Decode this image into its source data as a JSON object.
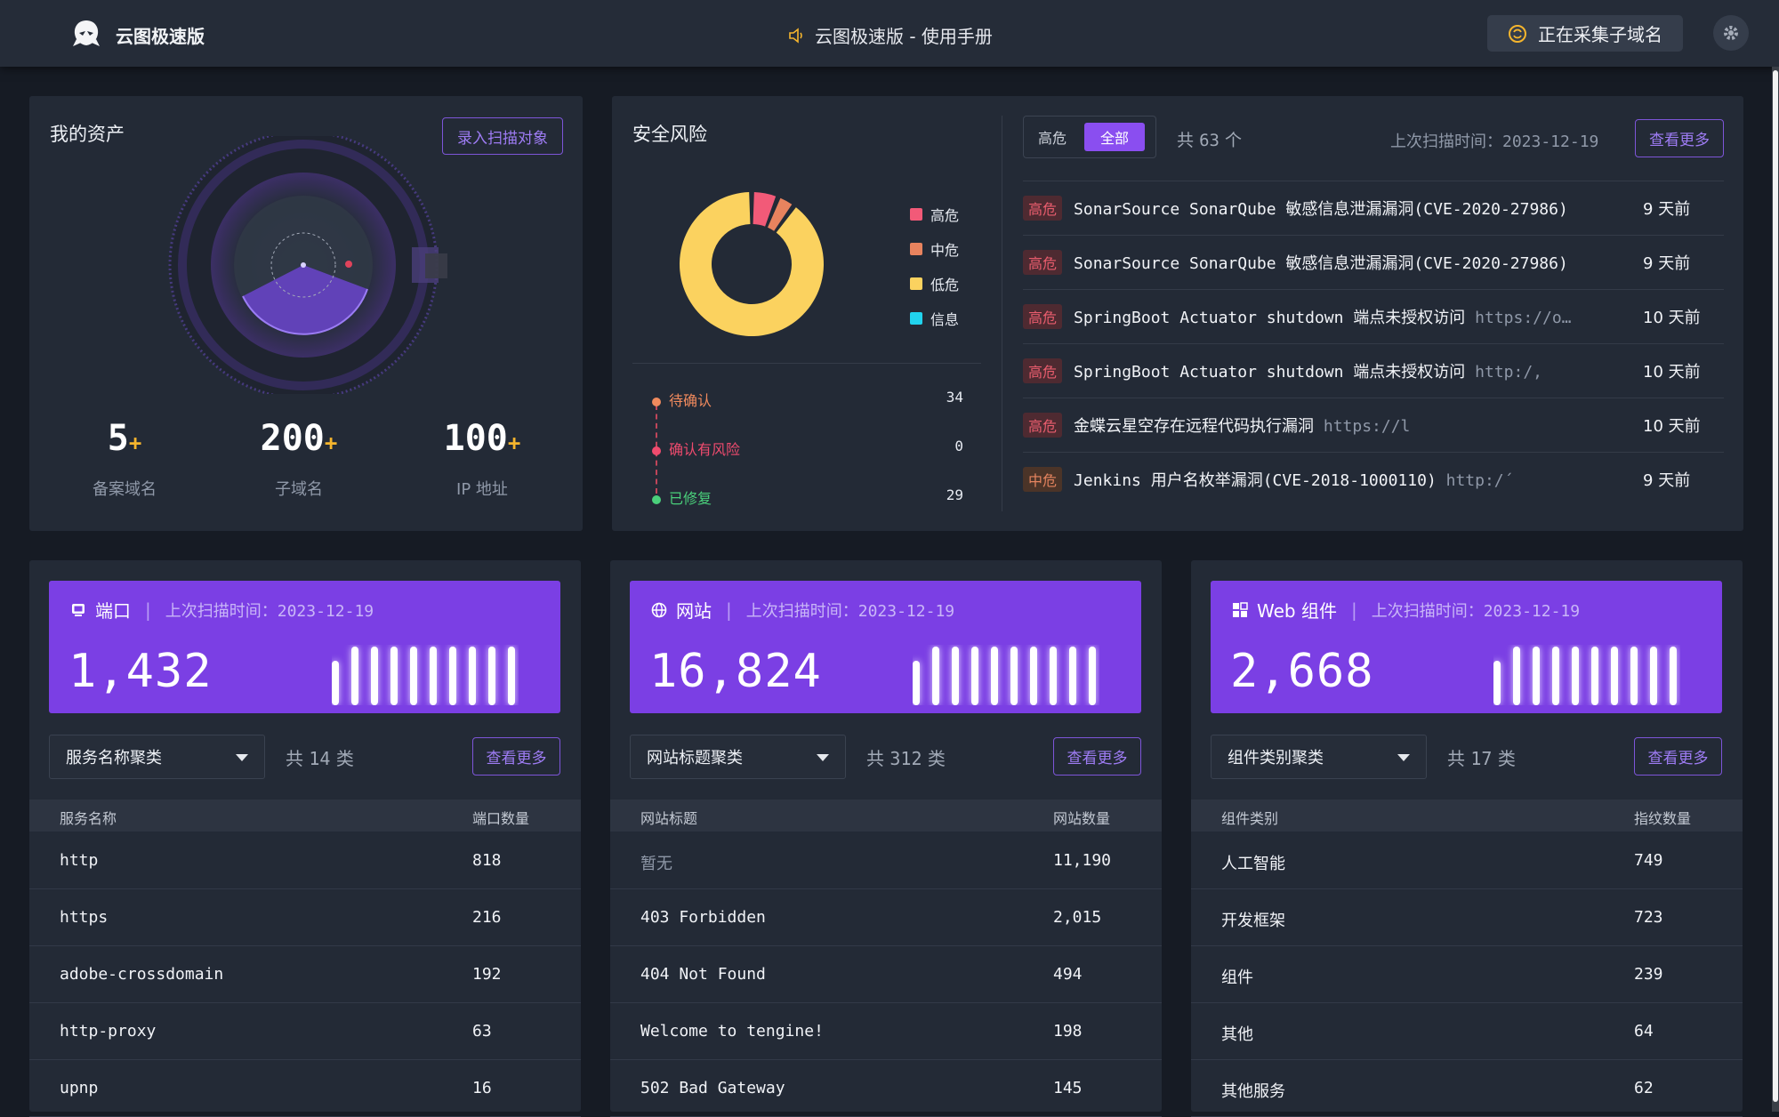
{
  "app": {
    "title": "云图极速版",
    "manual": "云图极速版 - 使用手册",
    "collect_status": "正在采集子域名"
  },
  "assets": {
    "title": "我的资产",
    "add_button": "录入扫描对象",
    "stats": [
      {
        "value": "5",
        "plus": "+",
        "label": "备案域名"
      },
      {
        "value": "200",
        "plus": "+",
        "label": "子域名"
      },
      {
        "value": "100",
        "plus": "+",
        "label": "IP 地址"
      }
    ]
  },
  "risk": {
    "title": "安全风险",
    "legend": [
      {
        "label": "高危",
        "color": "#f25a78"
      },
      {
        "label": "中危",
        "color": "#e8835e"
      },
      {
        "label": "低危",
        "color": "#fbd25f"
      },
      {
        "label": "信息",
        "color": "#21d3ee"
      }
    ],
    "donut": [
      {
        "level": "高危",
        "value": 6
      },
      {
        "level": "中危",
        "value": 4
      },
      {
        "level": "低危",
        "value": 90
      },
      {
        "level": "信息",
        "value": 0
      }
    ],
    "status": [
      {
        "label": "待确认",
        "value": "34",
        "color": "#f08a5d"
      },
      {
        "label": "确认有风险",
        "value": "0",
        "color": "#ef4b6e"
      },
      {
        "label": "已修复",
        "value": "29",
        "color": "#4ad07b"
      }
    ],
    "filter": {
      "high": "高危",
      "all": "全部"
    },
    "total_prefix": "共",
    "total_value": "63",
    "total_suffix": "个",
    "last_scan": "上次扫描时间：2023-12-19",
    "more": "查看更多",
    "vulns": [
      {
        "level": "高危",
        "name": "SonarSource SonarQube 敏感信息泄漏漏洞(CVE-2020-27986)",
        "url": "",
        "time": "9 天前"
      },
      {
        "level": "高危",
        "name": "SonarSource SonarQube 敏感信息泄漏漏洞(CVE-2020-27986)",
        "url": "",
        "time": "9 天前"
      },
      {
        "level": "高危",
        "name": "SpringBoot Actuator shutdown 端点未授权访问",
        "url": "https://o…",
        "time": "10 天前"
      },
      {
        "level": "高危",
        "name": "SpringBoot Actuator shutdown 端点未授权访问",
        "url": "http:/,",
        "time": "10 天前"
      },
      {
        "level": "高危",
        "name": "金蝶云星空存在远程代码执行漏洞",
        "url": "https://l",
        "time": "10 天前"
      },
      {
        "level": "中危",
        "name": "Jenkins 用户名枚举漏洞(CVE-2018-1000110)",
        "url": "http:/´",
        "time": "9 天前"
      }
    ]
  },
  "panels": [
    {
      "title": "端口",
      "icon": "monitor-icon",
      "last_scan": "上次扫描时间：2023-12-19",
      "total": "1,432",
      "dropdown": "服务名称聚类",
      "count_prefix": "共",
      "count": "14",
      "count_suffix": "类",
      "more": "查看更多",
      "col1": "服务名称",
      "col2": "端口数量",
      "rows": [
        [
          "http",
          "818"
        ],
        [
          "https",
          "216"
        ],
        [
          "adobe-crossdomain",
          "192"
        ],
        [
          "http-proxy",
          "63"
        ],
        [
          "upnp",
          "16"
        ]
      ]
    },
    {
      "title": "网站",
      "icon": "globe-icon",
      "last_scan": "上次扫描时间：2023-12-19",
      "total": "16,824",
      "dropdown": "网站标题聚类",
      "count_prefix": "共",
      "count": "312",
      "count_suffix": "类",
      "more": "查看更多",
      "col1": "网站标题",
      "col2": "网站数量",
      "rows": [
        [
          "暂无",
          "11,190"
        ],
        [
          "403 Forbidden",
          "2,015"
        ],
        [
          "404 Not Found",
          "494"
        ],
        [
          "Welcome to tengine!",
          "198"
        ],
        [
          "502 Bad Gateway",
          "145"
        ]
      ]
    },
    {
      "title": "Web 组件",
      "icon": "grid-icon",
      "last_scan": "上次扫描时间：2023-12-19",
      "total": "2,668",
      "dropdown": "组件类别聚类",
      "count_prefix": "共",
      "count": "17",
      "count_suffix": "类",
      "more": "查看更多",
      "col1": "组件类别",
      "col2": "指纹数量",
      "rows": [
        [
          "人工智能",
          "749"
        ],
        [
          "开发框架",
          "723"
        ],
        [
          "组件",
          "239"
        ],
        [
          "其他",
          "64"
        ],
        [
          "其他服务",
          "62"
        ]
      ]
    }
  ]
}
